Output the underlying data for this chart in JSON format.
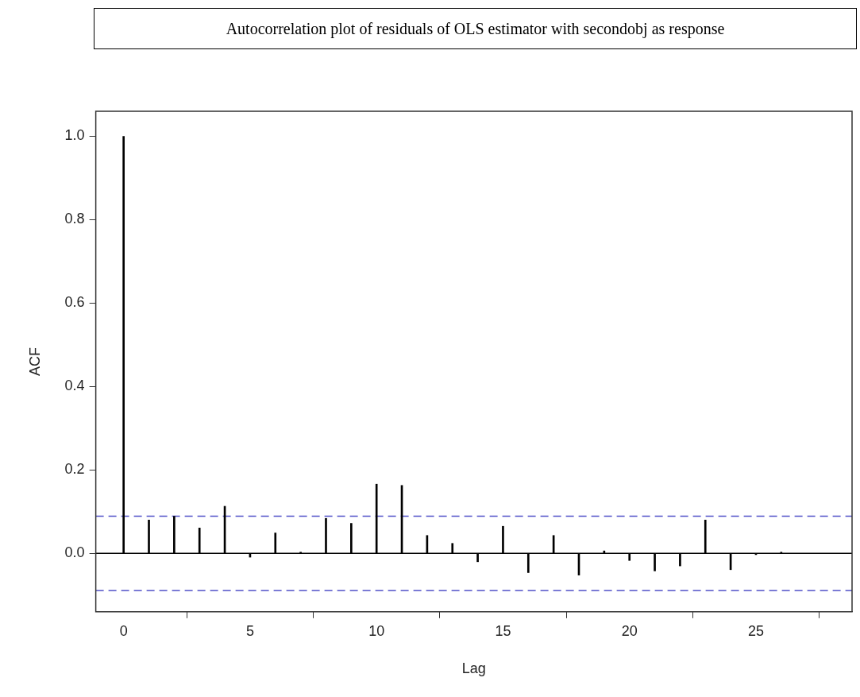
{
  "chart_data": {
    "type": "bar",
    "title": "Autocorrelation plot of residuals of OLS estimator with secondobj as response",
    "xlabel": "Lag",
    "ylabel": "ACF",
    "x": [
      0,
      1,
      2,
      3,
      4,
      5,
      6,
      7,
      8,
      9,
      10,
      11,
      12,
      13,
      14,
      15,
      16,
      17,
      18,
      19,
      20,
      21,
      22,
      23,
      24,
      25,
      26
    ],
    "series": [
      {
        "color": "#000000",
        "values": [
          1.0,
          0.08,
          0.089,
          0.061,
          0.113,
          -0.009,
          0.049,
          0.003,
          0.084,
          0.072,
          0.166,
          0.163,
          0.043,
          0.024,
          -0.02,
          0.065,
          -0.046,
          0.043,
          -0.052,
          0.006,
          -0.017,
          -0.042,
          -0.03,
          0.08,
          -0.039,
          -0.003,
          0.003
        ]
      }
    ],
    "xlim": [
      -1.1,
      28.8
    ],
    "xticks": [
      0,
      5,
      10,
      15,
      20,
      25
    ],
    "ylim": [
      -0.14,
      1.06
    ],
    "yticks": [
      {
        "value": 0,
        "label": "0.0"
      },
      {
        "value": 0.2,
        "label": "0.2"
      },
      {
        "value": 0.4,
        "label": "0.4"
      },
      {
        "value": 0.6,
        "label": "0.6"
      },
      {
        "value": 0.8,
        "label": "0.8"
      },
      {
        "value": 1,
        "label": "1.0"
      }
    ],
    "ref_lines": [
      {
        "axis": "y",
        "value": 0,
        "color": "#000000",
        "line_style": "solid"
      },
      {
        "axis": "y",
        "value": 0.089,
        "color": "#5050c8",
        "line_style": "dashed"
      },
      {
        "axis": "y",
        "value": -0.089,
        "color": "#5050c8",
        "line_style": "dashed"
      }
    ],
    "grid": false,
    "legend": false
  }
}
